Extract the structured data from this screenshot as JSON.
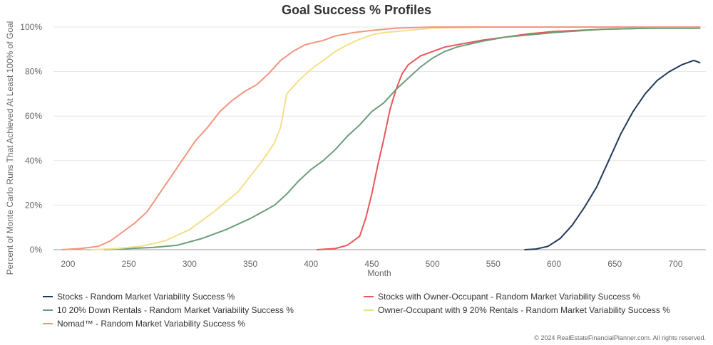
{
  "chart_data": {
    "type": "line",
    "title": "Goal Success % Profiles",
    "xlabel": "Month",
    "ylabel": "Percent of Monte Carlo Runs That Achieved At Least 100% of Goal",
    "xlim": [
      188,
      725
    ],
    "ylim": [
      0,
      100
    ],
    "x_ticks": [
      "200",
      "250",
      "300",
      "350",
      "400",
      "450",
      "500",
      "550",
      "600",
      "650",
      "700"
    ],
    "y_ticks": [
      "0%",
      "20%",
      "40%",
      "60%",
      "80%",
      "100%"
    ],
    "grid": "horizontal",
    "legend_position": "bottom",
    "series": [
      {
        "name": "Stocks - Random Market Variability Success %",
        "color": "#1f3a5a",
        "points": [
          [
            576,
            0
          ],
          [
            585,
            0.3
          ],
          [
            595,
            1.5
          ],
          [
            605,
            5
          ],
          [
            615,
            11
          ],
          [
            625,
            19
          ],
          [
            635,
            28
          ],
          [
            645,
            40
          ],
          [
            655,
            52
          ],
          [
            665,
            62
          ],
          [
            675,
            70
          ],
          [
            685,
            76
          ],
          [
            695,
            80
          ],
          [
            705,
            83
          ],
          [
            715,
            85
          ],
          [
            720,
            84
          ]
        ]
      },
      {
        "name": "Stocks with Owner-Occupant - Random Market Variability Success %",
        "color": "#e8565a",
        "points": [
          [
            405,
            0
          ],
          [
            420,
            0.5
          ],
          [
            430,
            2
          ],
          [
            440,
            6
          ],
          [
            445,
            14
          ],
          [
            450,
            25
          ],
          [
            455,
            38
          ],
          [
            460,
            50
          ],
          [
            465,
            63
          ],
          [
            470,
            72
          ],
          [
            475,
            79
          ],
          [
            480,
            83
          ],
          [
            490,
            87
          ],
          [
            500,
            89
          ],
          [
            510,
            91
          ],
          [
            520,
            92
          ],
          [
            540,
            94
          ],
          [
            560,
            95.5
          ],
          [
            580,
            97
          ],
          [
            600,
            98
          ],
          [
            640,
            99
          ],
          [
            680,
            99.5
          ],
          [
            720,
            99.5
          ]
        ]
      },
      {
        "name": "10 20% Down Rentals - Random Market Variability Success %",
        "color": "#6b9e7a",
        "points": [
          [
            230,
            0
          ],
          [
            250,
            0.5
          ],
          [
            270,
            1
          ],
          [
            290,
            2
          ],
          [
            310,
            5
          ],
          [
            330,
            9
          ],
          [
            350,
            14
          ],
          [
            370,
            20
          ],
          [
            380,
            25
          ],
          [
            390,
            31
          ],
          [
            400,
            36
          ],
          [
            410,
            40
          ],
          [
            420,
            45
          ],
          [
            430,
            51
          ],
          [
            440,
            56
          ],
          [
            450,
            62
          ],
          [
            460,
            66
          ],
          [
            470,
            72
          ],
          [
            480,
            77
          ],
          [
            490,
            82
          ],
          [
            500,
            86
          ],
          [
            510,
            89
          ],
          [
            520,
            91
          ],
          [
            540,
            93.5
          ],
          [
            560,
            95.5
          ],
          [
            580,
            96.5
          ],
          [
            600,
            97.5
          ],
          [
            640,
            99
          ],
          [
            680,
            99.5
          ],
          [
            720,
            99.5
          ]
        ]
      },
      {
        "name": "Owner-Occupant with 9 20% Rentals - Random Market Variability Success %",
        "color": "#f3e08a",
        "points": [
          [
            220,
            0
          ],
          [
            240,
            0.5
          ],
          [
            260,
            1.5
          ],
          [
            280,
            4
          ],
          [
            300,
            9
          ],
          [
            320,
            17
          ],
          [
            340,
            26
          ],
          [
            350,
            33
          ],
          [
            360,
            40
          ],
          [
            370,
            48
          ],
          [
            375,
            55
          ],
          [
            380,
            70
          ],
          [
            390,
            76
          ],
          [
            400,
            81
          ],
          [
            410,
            85
          ],
          [
            420,
            89
          ],
          [
            430,
            92
          ],
          [
            440,
            94.5
          ],
          [
            450,
            96.5
          ],
          [
            460,
            97.5
          ],
          [
            480,
            98.5
          ],
          [
            500,
            99.5
          ],
          [
            550,
            100
          ],
          [
            720,
            100
          ]
        ]
      },
      {
        "name": "Nomad™ - Random Market Variability Success %",
        "color": "#f3957e",
        "points": [
          [
            195,
            0
          ],
          [
            210,
            0.5
          ],
          [
            225,
            1.5
          ],
          [
            235,
            4
          ],
          [
            245,
            8
          ],
          [
            255,
            12
          ],
          [
            265,
            17
          ],
          [
            275,
            25
          ],
          [
            285,
            33
          ],
          [
            295,
            41
          ],
          [
            305,
            49
          ],
          [
            315,
            55
          ],
          [
            325,
            62
          ],
          [
            335,
            67
          ],
          [
            345,
            71
          ],
          [
            355,
            74
          ],
          [
            365,
            79
          ],
          [
            375,
            85
          ],
          [
            385,
            89
          ],
          [
            395,
            92
          ],
          [
            410,
            94
          ],
          [
            420,
            96
          ],
          [
            435,
            97.5
          ],
          [
            450,
            98.5
          ],
          [
            470,
            99.5
          ],
          [
            500,
            100
          ],
          [
            720,
            100
          ]
        ]
      }
    ]
  },
  "copyright": "© 2024 RealEstateFinancialPlanner.com. All rights reserved."
}
